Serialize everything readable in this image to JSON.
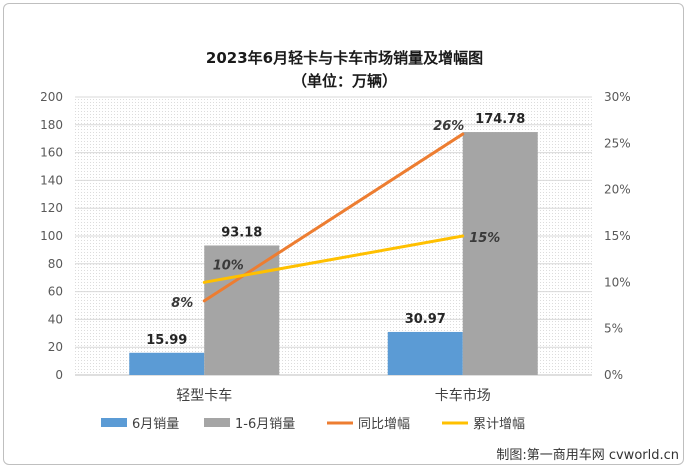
{
  "title_line1": "2023年6月轻卡与卡车市场销量及增幅图",
  "title_line2": "（单位：万辆）",
  "credit": "制图:第一商用车网 cvworld.cn",
  "colors": {
    "monthly": "#5b9bd5",
    "cumulative": "#a5a5a5",
    "yoy": "#ed7d31",
    "cum_growth": "#ffc000",
    "grid": "#d9d9d9",
    "axis_text": "#595959"
  },
  "chart_data": {
    "type": "bar",
    "title": "2023年6月轻卡与卡车市场销量及增幅图",
    "subtitle": "（单位：万辆）",
    "categories": [
      "轻型卡车",
      "卡车市场"
    ],
    "ylim": [
      0,
      200
    ],
    "y_ticks": [
      "0",
      "20",
      "40",
      "60",
      "80",
      "100",
      "120",
      "140",
      "160",
      "180",
      "200"
    ],
    "y2lim": [
      0,
      30
    ],
    "y2_ticks": [
      "0%",
      "5%",
      "10%",
      "15%",
      "20%",
      "25%",
      "30%"
    ],
    "grid": true,
    "legend_position": "bottom",
    "series": [
      {
        "name": "6月销量",
        "type": "bar",
        "axis": "left",
        "values": [
          15.99,
          30.97
        ],
        "labels": [
          "15.99",
          "30.97"
        ]
      },
      {
        "name": "1-6月销量",
        "type": "bar",
        "axis": "left",
        "values": [
          93.18,
          174.78
        ],
        "labels": [
          "93.18",
          "174.78"
        ]
      },
      {
        "name": "同比增幅",
        "type": "line",
        "axis": "right",
        "values": [
          8,
          26
        ],
        "labels": [
          "8%",
          "26%"
        ]
      },
      {
        "name": "累计增幅",
        "type": "line",
        "axis": "right",
        "values": [
          10,
          15
        ],
        "labels": [
          "10%",
          "15%"
        ]
      }
    ]
  }
}
